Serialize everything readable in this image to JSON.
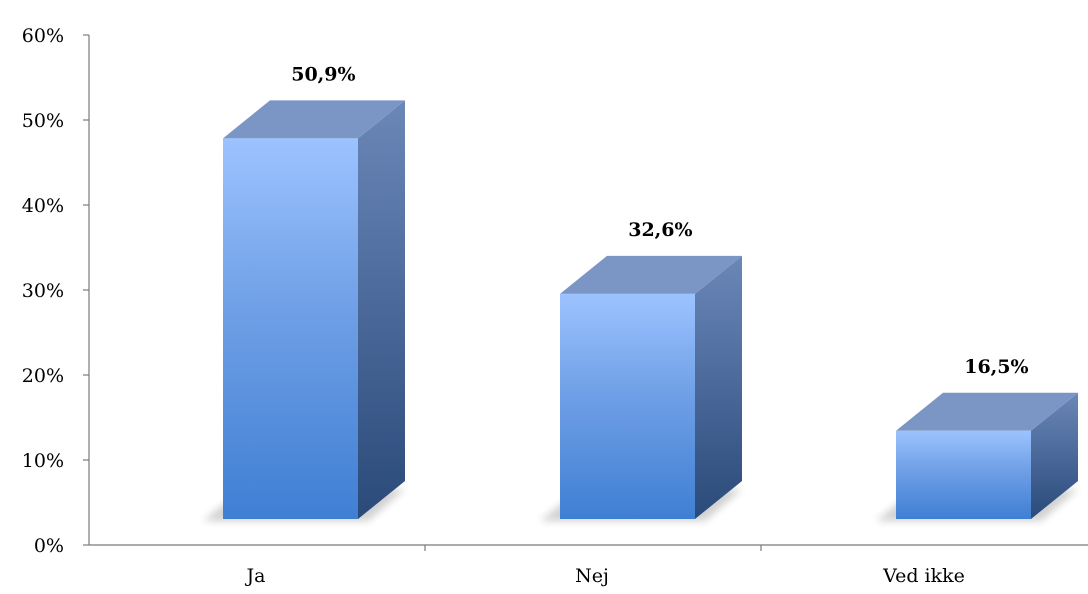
{
  "chart_data": {
    "type": "bar",
    "title": "",
    "xlabel": "",
    "ylabel": "",
    "categories": [
      "Ja",
      "Nej",
      "Ved ikke"
    ],
    "values": [
      50.9,
      32.6,
      16.5
    ],
    "data_labels": [
      "50,9%",
      "32,6%",
      "16,5%"
    ],
    "ylim": [
      0,
      60
    ],
    "yticks": [
      0,
      10,
      20,
      30,
      40,
      50,
      60
    ],
    "ytick_labels": [
      "0%",
      "10%",
      "20%",
      "30%",
      "40%",
      "50%",
      "60%"
    ],
    "grid": false,
    "legend": "none",
    "style": "3d-column",
    "colors": {
      "front_top": "#9cc3ff",
      "front_mid": "#6f9fe6",
      "front_bottom": "#3f7fd3",
      "side_top": "#6a87b8",
      "side_bottom": "#2a4a7a",
      "top_face": "#7b95c4",
      "axis": "#7a7a7a"
    }
  }
}
